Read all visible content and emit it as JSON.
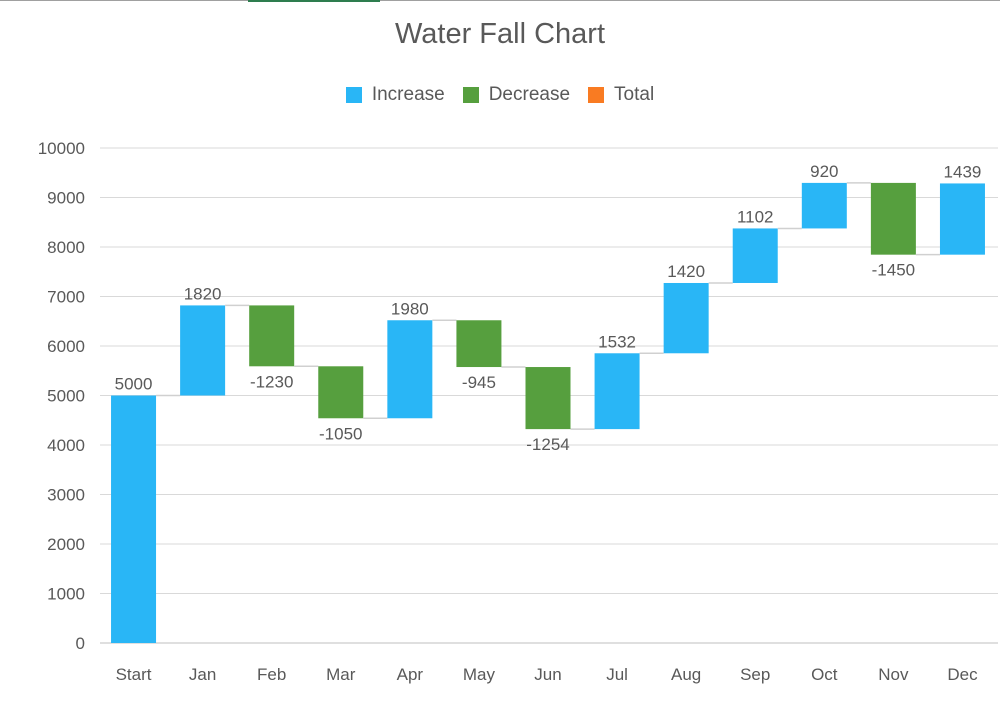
{
  "chart_data": {
    "type": "waterfall",
    "title": "Water Fall Chart",
    "legend": {
      "placement": "top",
      "entries": [
        {
          "name": "Increase",
          "color": "#29b6f6"
        },
        {
          "name": "Decrease",
          "color": "#569f3e"
        },
        {
          "name": "Total",
          "color": "#f97b22"
        }
      ]
    },
    "categories": [
      "Start",
      "Jan",
      "Feb",
      "Mar",
      "Apr",
      "May",
      "Jun",
      "Jul",
      "Aug",
      "Sep",
      "Oct",
      "Nov",
      "Dec"
    ],
    "values": [
      5000,
      1820,
      -1230,
      -1050,
      1980,
      -945,
      -1254,
      1532,
      1420,
      1102,
      920,
      -1450,
      1439
    ],
    "ylim": [
      0,
      10000
    ],
    "yticks": [
      0,
      1000,
      2000,
      3000,
      4000,
      5000,
      6000,
      7000,
      8000,
      9000,
      10000
    ],
    "grid": true,
    "connector_color": "#d0d0d0"
  }
}
